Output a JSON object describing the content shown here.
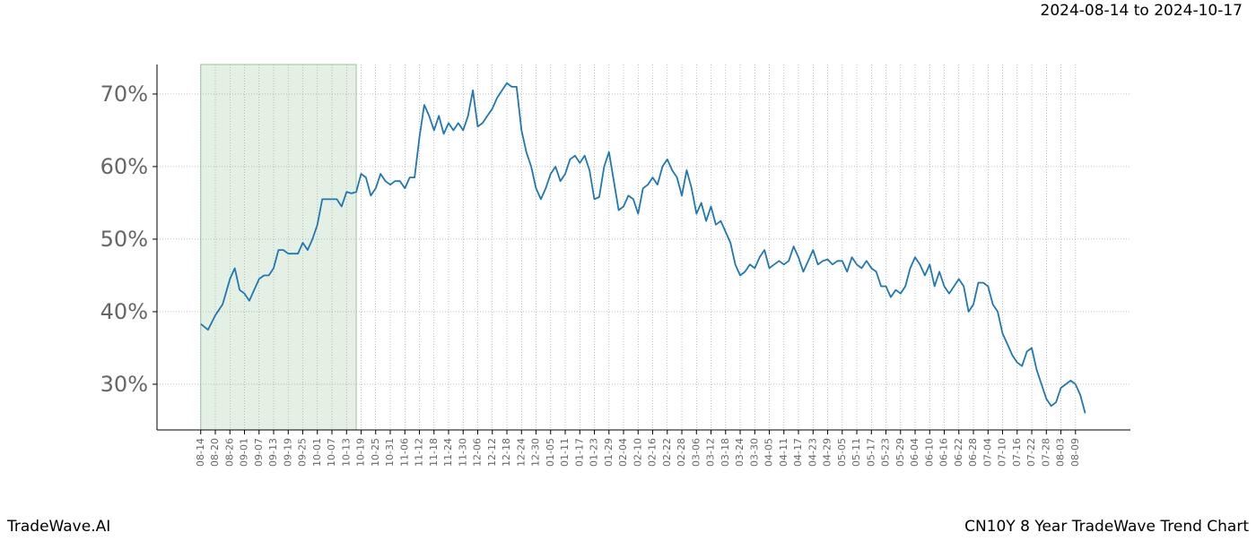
{
  "chart_data": {
    "type": "line",
    "span_label": "2024-08-14 to 2024-10-17",
    "footer_left": "TradeWave.AI",
    "footer_right": "CN10Y 8 Year TradeWave Trend Chart",
    "shade_x": [
      0,
      64
    ],
    "shade_color": "#d9ead9",
    "grid": true,
    "xlim": [
      -18,
      382.6
    ],
    "ylim": [
      23.7,
      74.07
    ],
    "yticks": [
      {
        "value": 30,
        "label": "30%"
      },
      {
        "value": 40,
        "label": "40%"
      },
      {
        "value": 50,
        "label": "50%"
      },
      {
        "value": 60,
        "label": "60%"
      },
      {
        "value": 70,
        "label": "70%"
      }
    ],
    "xticks": [
      {
        "value": 0,
        "label": "08-14"
      },
      {
        "value": 6,
        "label": "08-20"
      },
      {
        "value": 12,
        "label": "08-26"
      },
      {
        "value": 18,
        "label": "09-01"
      },
      {
        "value": 24,
        "label": "09-07"
      },
      {
        "value": 30,
        "label": "09-13"
      },
      {
        "value": 36,
        "label": "09-19"
      },
      {
        "value": 42,
        "label": "09-25"
      },
      {
        "value": 48,
        "label": "10-01"
      },
      {
        "value": 54,
        "label": "10-07"
      },
      {
        "value": 60,
        "label": "10-13"
      },
      {
        "value": 66,
        "label": "10-19"
      },
      {
        "value": 72,
        "label": "10-25"
      },
      {
        "value": 78,
        "label": "10-31"
      },
      {
        "value": 84,
        "label": "11-06"
      },
      {
        "value": 90,
        "label": "11-12"
      },
      {
        "value": 96,
        "label": "11-18"
      },
      {
        "value": 102,
        "label": "11-24"
      },
      {
        "value": 108,
        "label": "11-30"
      },
      {
        "value": 114,
        "label": "12-06"
      },
      {
        "value": 120,
        "label": "12-12"
      },
      {
        "value": 126,
        "label": "12-18"
      },
      {
        "value": 132,
        "label": "12-24"
      },
      {
        "value": 138,
        "label": "12-30"
      },
      {
        "value": 144,
        "label": "01-05"
      },
      {
        "value": 150,
        "label": "01-11"
      },
      {
        "value": 156,
        "label": "01-17"
      },
      {
        "value": 162,
        "label": "01-23"
      },
      {
        "value": 168,
        "label": "01-29"
      },
      {
        "value": 174,
        "label": "02-04"
      },
      {
        "value": 180,
        "label": "02-10"
      },
      {
        "value": 186,
        "label": "02-16"
      },
      {
        "value": 192,
        "label": "02-22"
      },
      {
        "value": 198,
        "label": "02-28"
      },
      {
        "value": 204,
        "label": "03-06"
      },
      {
        "value": 210,
        "label": "03-12"
      },
      {
        "value": 216,
        "label": "03-18"
      },
      {
        "value": 222,
        "label": "03-24"
      },
      {
        "value": 228,
        "label": "03-30"
      },
      {
        "value": 234,
        "label": "04-05"
      },
      {
        "value": 240,
        "label": "04-11"
      },
      {
        "value": 246,
        "label": "04-17"
      },
      {
        "value": 252,
        "label": "04-23"
      },
      {
        "value": 258,
        "label": "04-29"
      },
      {
        "value": 264,
        "label": "05-05"
      },
      {
        "value": 270,
        "label": "05-11"
      },
      {
        "value": 276,
        "label": "05-17"
      },
      {
        "value": 282,
        "label": "05-23"
      },
      {
        "value": 288,
        "label": "05-29"
      },
      {
        "value": 294,
        "label": "06-04"
      },
      {
        "value": 300,
        "label": "06-10"
      },
      {
        "value": 306,
        "label": "06-16"
      },
      {
        "value": 312,
        "label": "06-22"
      },
      {
        "value": 318,
        "label": "06-28"
      },
      {
        "value": 324,
        "label": "07-04"
      },
      {
        "value": 330,
        "label": "07-10"
      },
      {
        "value": 336,
        "label": "07-16"
      },
      {
        "value": 342,
        "label": "07-22"
      },
      {
        "value": 348,
        "label": "07-28"
      },
      {
        "value": 354,
        "label": "08-03"
      },
      {
        "value": 360,
        "label": "08-09"
      }
    ],
    "x": [
      0,
      3,
      6,
      9,
      12,
      14,
      16,
      18,
      20,
      22,
      24,
      26,
      28,
      30,
      32,
      34,
      36,
      38,
      40,
      42,
      44,
      46,
      48,
      50,
      52,
      54,
      56,
      58,
      60,
      62,
      64,
      66,
      68,
      70,
      72,
      74,
      76,
      78,
      80,
      82,
      84,
      86,
      88,
      90,
      92,
      94,
      96,
      98,
      100,
      102,
      104,
      106,
      108,
      110,
      112,
      114,
      116,
      118,
      120,
      122,
      124,
      126,
      128,
      130,
      132,
      134,
      136,
      138,
      140,
      142,
      144,
      146,
      148,
      150,
      152,
      154,
      156,
      158,
      160,
      162,
      164,
      166,
      168,
      170,
      172,
      174,
      176,
      178,
      180,
      182,
      184,
      186,
      188,
      190,
      192,
      194,
      196,
      198,
      200,
      202,
      204,
      206,
      208,
      210,
      212,
      214,
      216,
      218,
      220,
      222,
      224,
      226,
      228,
      230,
      232,
      234,
      236,
      238,
      240,
      242,
      244,
      246,
      248,
      250,
      252,
      254,
      256,
      258,
      260,
      262,
      264,
      266,
      268,
      270,
      272,
      274,
      276,
      278,
      280,
      282,
      284,
      286,
      288,
      290,
      292,
      294,
      296,
      298,
      300,
      302,
      304,
      306,
      308,
      310,
      312,
      314,
      316,
      318,
      320,
      322,
      324,
      326,
      328,
      330,
      332,
      334,
      336,
      338,
      340,
      342,
      344,
      346,
      348,
      350,
      352,
      354,
      356,
      358,
      360,
      362,
      364
    ],
    "series": [
      {
        "color": "#1f77b4",
        "values": [
          38.3,
          37.5,
          39.5,
          41,
          44.5,
          46,
          43,
          42.5,
          41.5,
          43,
          44.5,
          45,
          45,
          46,
          48.5,
          48.5,
          48,
          48,
          48,
          49.5,
          48.5,
          50,
          52,
          55.5,
          55.5,
          55.5,
          55.5,
          54.5,
          56.5,
          56.3,
          56.5,
          59,
          58.5,
          56,
          57,
          59,
          58,
          57.5,
          58,
          58,
          57,
          58.5,
          58.5,
          64,
          68.5,
          67,
          65,
          67,
          64.5,
          66,
          65,
          66,
          65,
          67,
          70.5,
          65.5,
          66,
          67,
          68,
          69.5,
          70.5,
          71.5,
          71,
          71,
          65,
          62,
          60,
          57,
          55.5,
          57,
          59,
          60,
          58,
          59,
          61,
          61.5,
          60.5,
          61.5,
          59.5,
          55.5,
          55.8,
          60,
          62,
          58,
          54,
          54.5,
          56,
          55.5,
          53.5,
          57,
          57.5,
          58.5,
          57.5,
          60,
          61,
          59.5,
          58.5,
          56,
          59.5,
          57,
          53.5,
          55,
          52.5,
          54.5,
          52,
          52.5,
          51,
          49.5,
          46.5,
          45,
          45.5,
          46.5,
          46,
          47.5,
          48.5,
          46,
          46.5,
          47,
          46.5,
          47,
          49,
          47.5,
          45.5,
          47,
          48.5,
          46.5,
          47,
          47.2,
          46.5,
          47,
          47,
          45.5,
          47.5,
          46.5,
          46,
          47,
          46,
          45.5,
          43.5,
          43.5,
          42,
          43,
          42.5,
          43.5,
          46,
          47.5,
          46.5,
          45,
          46.5,
          43.5,
          45.5,
          43.5,
          42.5,
          43.5,
          44.5,
          43.5,
          40,
          41,
          44,
          44,
          43.5,
          41,
          40,
          37,
          35.5,
          34,
          33,
          32.5,
          34.5,
          35,
          32,
          30,
          28,
          27,
          27.5,
          29.5,
          30,
          30.5,
          30,
          28.5,
          26
        ]
      }
    ]
  }
}
